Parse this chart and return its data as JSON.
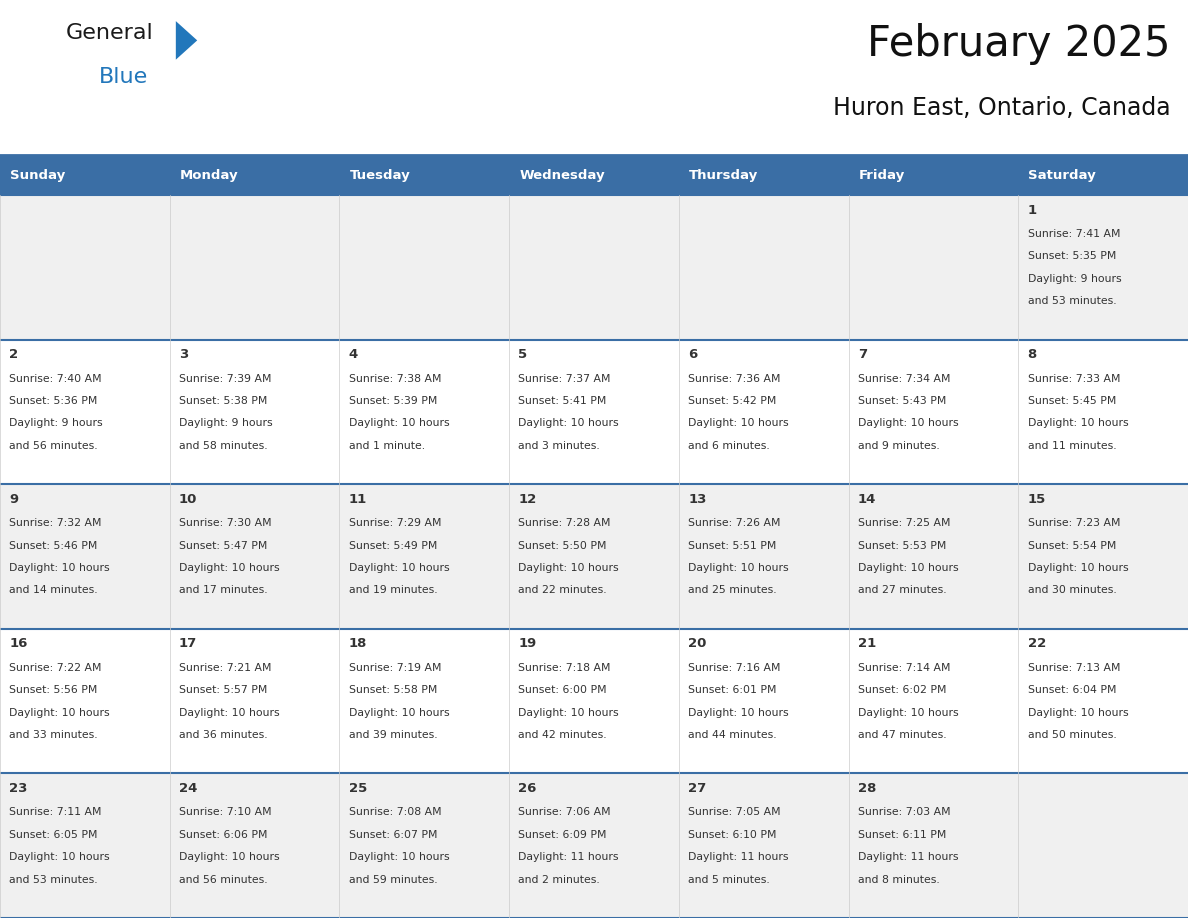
{
  "title": "February 2025",
  "subtitle": "Huron East, Ontario, Canada",
  "header_bg": "#3a6ea5",
  "header_text_color": "#ffffff",
  "cell_bg_odd": "#f0f0f0",
  "cell_bg_even": "#ffffff",
  "separator_color": "#3a6ea5",
  "grid_color": "#cccccc",
  "day_headers": [
    "Sunday",
    "Monday",
    "Tuesday",
    "Wednesday",
    "Thursday",
    "Friday",
    "Saturday"
  ],
  "days": [
    {
      "day": 1,
      "col": 6,
      "row": 0,
      "sunrise": "7:41 AM",
      "sunset": "5:35 PM",
      "daylight": "9 hours",
      "daylight2": "and 53 minutes."
    },
    {
      "day": 2,
      "col": 0,
      "row": 1,
      "sunrise": "7:40 AM",
      "sunset": "5:36 PM",
      "daylight": "9 hours",
      "daylight2": "and 56 minutes."
    },
    {
      "day": 3,
      "col": 1,
      "row": 1,
      "sunrise": "7:39 AM",
      "sunset": "5:38 PM",
      "daylight": "9 hours",
      "daylight2": "and 58 minutes."
    },
    {
      "day": 4,
      "col": 2,
      "row": 1,
      "sunrise": "7:38 AM",
      "sunset": "5:39 PM",
      "daylight": "10 hours",
      "daylight2": "and 1 minute."
    },
    {
      "day": 5,
      "col": 3,
      "row": 1,
      "sunrise": "7:37 AM",
      "sunset": "5:41 PM",
      "daylight": "10 hours",
      "daylight2": "and 3 minutes."
    },
    {
      "day": 6,
      "col": 4,
      "row": 1,
      "sunrise": "7:36 AM",
      "sunset": "5:42 PM",
      "daylight": "10 hours",
      "daylight2": "and 6 minutes."
    },
    {
      "day": 7,
      "col": 5,
      "row": 1,
      "sunrise": "7:34 AM",
      "sunset": "5:43 PM",
      "daylight": "10 hours",
      "daylight2": "and 9 minutes."
    },
    {
      "day": 8,
      "col": 6,
      "row": 1,
      "sunrise": "7:33 AM",
      "sunset": "5:45 PM",
      "daylight": "10 hours",
      "daylight2": "and 11 minutes."
    },
    {
      "day": 9,
      "col": 0,
      "row": 2,
      "sunrise": "7:32 AM",
      "sunset": "5:46 PM",
      "daylight": "10 hours",
      "daylight2": "and 14 minutes."
    },
    {
      "day": 10,
      "col": 1,
      "row": 2,
      "sunrise": "7:30 AM",
      "sunset": "5:47 PM",
      "daylight": "10 hours",
      "daylight2": "and 17 minutes."
    },
    {
      "day": 11,
      "col": 2,
      "row": 2,
      "sunrise": "7:29 AM",
      "sunset": "5:49 PM",
      "daylight": "10 hours",
      "daylight2": "and 19 minutes."
    },
    {
      "day": 12,
      "col": 3,
      "row": 2,
      "sunrise": "7:28 AM",
      "sunset": "5:50 PM",
      "daylight": "10 hours",
      "daylight2": "and 22 minutes."
    },
    {
      "day": 13,
      "col": 4,
      "row": 2,
      "sunrise": "7:26 AM",
      "sunset": "5:51 PM",
      "daylight": "10 hours",
      "daylight2": "and 25 minutes."
    },
    {
      "day": 14,
      "col": 5,
      "row": 2,
      "sunrise": "7:25 AM",
      "sunset": "5:53 PM",
      "daylight": "10 hours",
      "daylight2": "and 27 minutes."
    },
    {
      "day": 15,
      "col": 6,
      "row": 2,
      "sunrise": "7:23 AM",
      "sunset": "5:54 PM",
      "daylight": "10 hours",
      "daylight2": "and 30 minutes."
    },
    {
      "day": 16,
      "col": 0,
      "row": 3,
      "sunrise": "7:22 AM",
      "sunset": "5:56 PM",
      "daylight": "10 hours",
      "daylight2": "and 33 minutes."
    },
    {
      "day": 17,
      "col": 1,
      "row": 3,
      "sunrise": "7:21 AM",
      "sunset": "5:57 PM",
      "daylight": "10 hours",
      "daylight2": "and 36 minutes."
    },
    {
      "day": 18,
      "col": 2,
      "row": 3,
      "sunrise": "7:19 AM",
      "sunset": "5:58 PM",
      "daylight": "10 hours",
      "daylight2": "and 39 minutes."
    },
    {
      "day": 19,
      "col": 3,
      "row": 3,
      "sunrise": "7:18 AM",
      "sunset": "6:00 PM",
      "daylight": "10 hours",
      "daylight2": "and 42 minutes."
    },
    {
      "day": 20,
      "col": 4,
      "row": 3,
      "sunrise": "7:16 AM",
      "sunset": "6:01 PM",
      "daylight": "10 hours",
      "daylight2": "and 44 minutes."
    },
    {
      "day": 21,
      "col": 5,
      "row": 3,
      "sunrise": "7:14 AM",
      "sunset": "6:02 PM",
      "daylight": "10 hours",
      "daylight2": "and 47 minutes."
    },
    {
      "day": 22,
      "col": 6,
      "row": 3,
      "sunrise": "7:13 AM",
      "sunset": "6:04 PM",
      "daylight": "10 hours",
      "daylight2": "and 50 minutes."
    },
    {
      "day": 23,
      "col": 0,
      "row": 4,
      "sunrise": "7:11 AM",
      "sunset": "6:05 PM",
      "daylight": "10 hours",
      "daylight2": "and 53 minutes."
    },
    {
      "day": 24,
      "col": 1,
      "row": 4,
      "sunrise": "7:10 AM",
      "sunset": "6:06 PM",
      "daylight": "10 hours",
      "daylight2": "and 56 minutes."
    },
    {
      "day": 25,
      "col": 2,
      "row": 4,
      "sunrise": "7:08 AM",
      "sunset": "6:07 PM",
      "daylight": "10 hours",
      "daylight2": "and 59 minutes."
    },
    {
      "day": 26,
      "col": 3,
      "row": 4,
      "sunrise": "7:06 AM",
      "sunset": "6:09 PM",
      "daylight": "11 hours",
      "daylight2": "and 2 minutes."
    },
    {
      "day": 27,
      "col": 4,
      "row": 4,
      "sunrise": "7:05 AM",
      "sunset": "6:10 PM",
      "daylight": "11 hours",
      "daylight2": "and 5 minutes."
    },
    {
      "day": 28,
      "col": 5,
      "row": 4,
      "sunrise": "7:03 AM",
      "sunset": "6:11 PM",
      "daylight": "11 hours",
      "daylight2": "and 8 minutes."
    }
  ],
  "num_rows": 5,
  "num_cols": 7,
  "fig_width": 11.88,
  "fig_height": 9.18,
  "logo_general": "General",
  "logo_blue": "Blue",
  "logo_general_color": "#1a1a1a",
  "logo_blue_color": "#2277bb",
  "logo_triangle_color": "#2277bb"
}
